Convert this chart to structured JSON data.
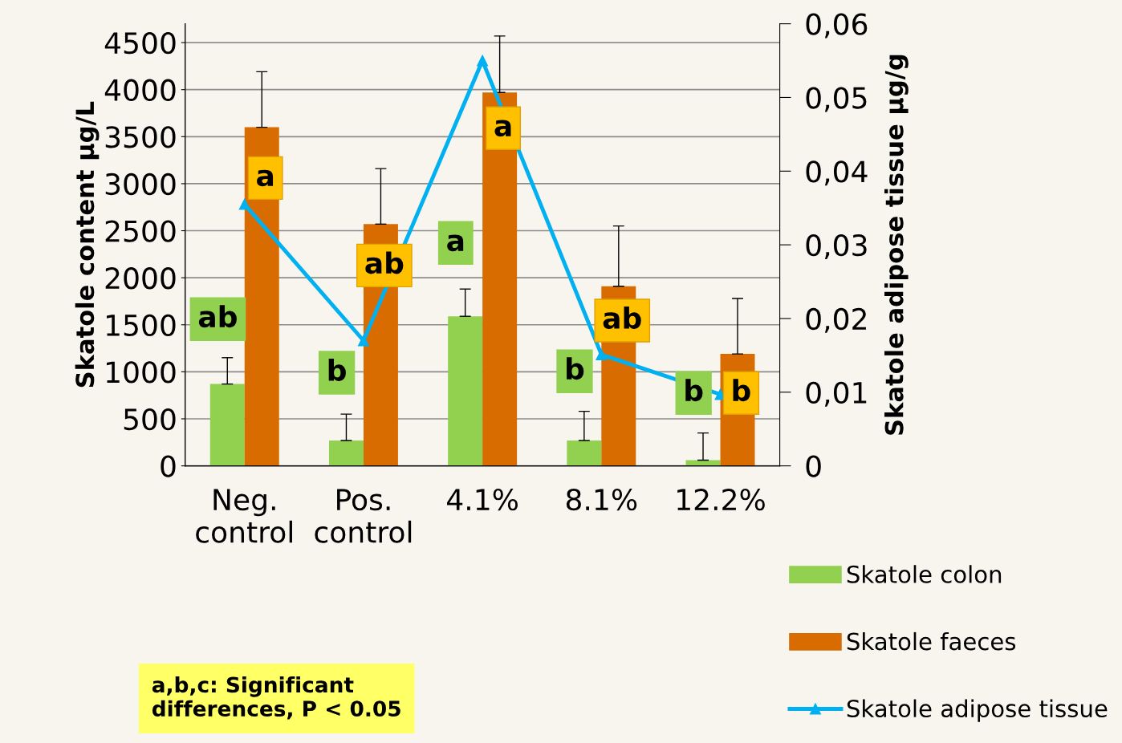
{
  "chart_data": {
    "type": "bar",
    "categories": [
      "Neg.\ncontrol",
      "Pos.\ncontrol",
      "4.1%",
      "8.1%",
      "12.2%"
    ],
    "ylabel": "Skatole content µg/L",
    "y2label": "Skatole adipose tissue µg/g",
    "ylim": [
      0,
      4700
    ],
    "yticks": [
      0,
      500,
      1000,
      1500,
      2000,
      2500,
      3000,
      3500,
      4000,
      4500
    ],
    "y2lim": [
      0,
      0.06
    ],
    "y2ticks": [
      {
        "value": 0,
        "label": "0"
      },
      {
        "value": 0.01,
        "label": "0,01"
      },
      {
        "value": 0.02,
        "label": "0,02"
      },
      {
        "value": 0.03,
        "label": "0,03"
      },
      {
        "value": 0.04,
        "label": "0,04"
      },
      {
        "value": 0.05,
        "label": "0,05"
      },
      {
        "value": 0.06,
        "label": "0,06"
      }
    ],
    "grid": "y",
    "legend": "right",
    "marker": "triangle",
    "series": [
      {
        "name": "Skatole colon",
        "color": "#92d050",
        "values": [
          870,
          270,
          1590,
          270,
          60
        ],
        "errors": [
          [
            870,
            1150
          ],
          [
            270,
            550
          ],
          [
            1590,
            1880
          ],
          [
            270,
            580
          ],
          [
            60,
            350
          ]
        ]
      },
      {
        "name": "Skatole faeces",
        "color": "#d96c00",
        "values": [
          3600,
          2570,
          3970,
          1910,
          1190
        ],
        "errors": [
          [
            3600,
            4190
          ],
          [
            2570,
            3160
          ],
          [
            3970,
            4570
          ],
          [
            1910,
            2550
          ],
          [
            1190,
            1780
          ]
        ]
      },
      {
        "name": "Skatole adipose tissue",
        "type": "line",
        "axis": "y2",
        "color": "#00b0f0",
        "values": [
          0.0355,
          0.017,
          0.055,
          0.0151,
          0.0097
        ]
      }
    ],
    "annotations": [
      {
        "text": "ab",
        "x": "Neg.\ncontrol",
        "y": 1560
      },
      {
        "text": "b",
        "x": "Pos.\ncontrol",
        "y": 990
      },
      {
        "text": "a",
        "x": "4.1%",
        "y": 2370
      },
      {
        "text": "b",
        "x": "8.1%",
        "y": 1005
      },
      {
        "text": "b",
        "x": "12.2%",
        "y": 775
      },
      {
        "text": "a",
        "x": "Neg.\ncontrol",
        "y": 3060
      },
      {
        "text": "ab",
        "x": "Pos.\ncontrol",
        "y": 2130
      },
      {
        "text": "a",
        "x": "4.1%",
        "y": 3590
      },
      {
        "text": "ab",
        "x": "8.1%",
        "y": 1545
      },
      {
        "text": "b",
        "x": "12.2%",
        "y": 775
      },
      "a,b,c: Significant\ndifferences, P < 0.05"
    ]
  }
}
